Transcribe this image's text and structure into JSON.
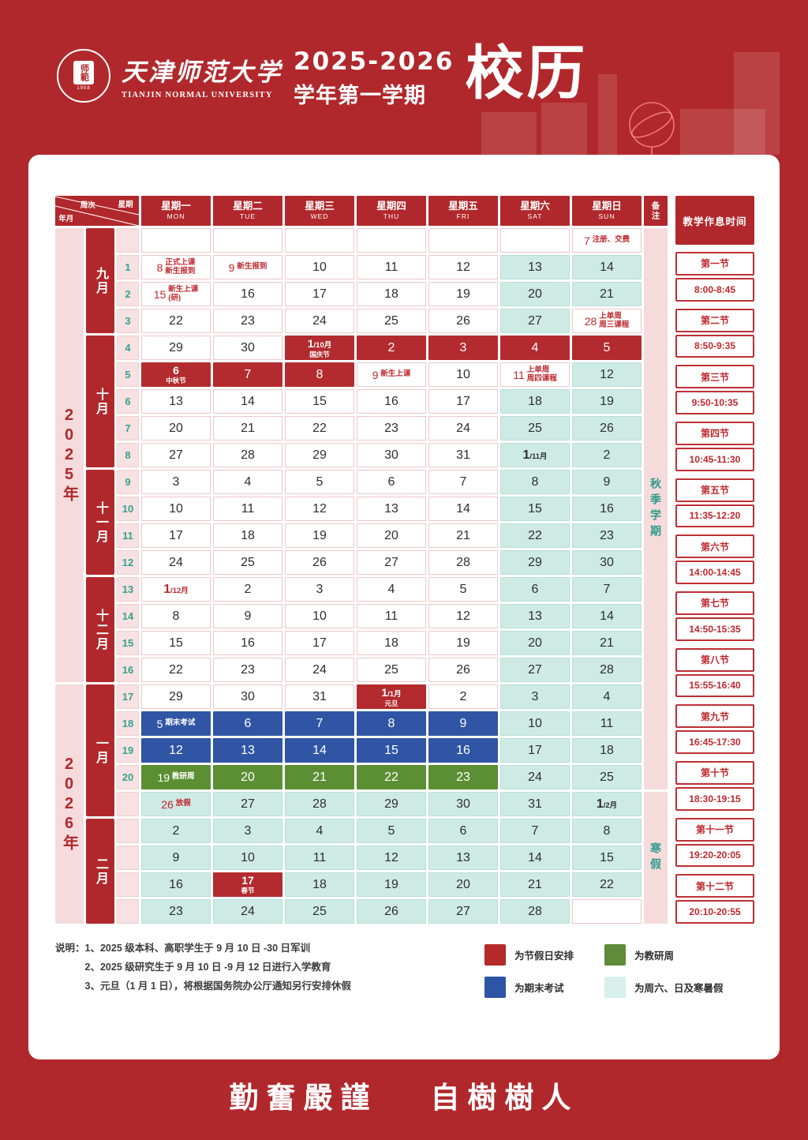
{
  "header": {
    "logo": {
      "seal_center": "师範",
      "seal_year": "1958",
      "name_cn": "天津师范大学",
      "name_en": "TIANJIN NORMAL UNIVERSITY"
    },
    "title": {
      "line1": "2025-2026",
      "line2": "学年第一学期",
      "big": "校历"
    }
  },
  "table": {
    "corner": {
      "week": "周次",
      "weekday": "星期",
      "yearmonth": "年月"
    },
    "beizhu_header": "备注",
    "day_headers": [
      {
        "cn": "星期一",
        "en": "MON"
      },
      {
        "cn": "星期二",
        "en": "TUE"
      },
      {
        "cn": "星期三",
        "en": "WED"
      },
      {
        "cn": "星期四",
        "en": "THU"
      },
      {
        "cn": "星期五",
        "en": "FRI"
      },
      {
        "cn": "星期六",
        "en": "SAT"
      },
      {
        "cn": "星期日",
        "en": "SUN"
      }
    ],
    "years": [
      {
        "label": "2025年",
        "from": 0,
        "span": 17
      },
      {
        "label": "2026年",
        "from": 17,
        "span": 9
      }
    ],
    "months": [
      {
        "label": "九月",
        "from": 0,
        "span": 4
      },
      {
        "label": "十月",
        "from": 4,
        "span": 5
      },
      {
        "label": "十一月",
        "from": 9,
        "span": 4
      },
      {
        "label": "十二月",
        "from": 13,
        "span": 4
      },
      {
        "label": "一月",
        "from": 17,
        "span": 5
      },
      {
        "label": "二月",
        "from": 22,
        "span": 4
      }
    ],
    "remarks": [
      {
        "label": "秋季学期",
        "from": 0,
        "span": 21
      },
      {
        "label": "寒假",
        "from": 21,
        "span": 5
      }
    ],
    "rows": [
      {
        "week": "",
        "cells": [
          {
            "cls": "empty"
          },
          {
            "cls": "empty"
          },
          {
            "cls": "empty"
          },
          {
            "cls": "empty"
          },
          {
            "cls": "empty"
          },
          {
            "cls": "empty"
          },
          {
            "d": "7",
            "note": "注册、交费",
            "cls": "event"
          }
        ]
      },
      {
        "week": "1",
        "cells": [
          {
            "d": "8",
            "note": "正式上课\n新生报到",
            "cls": "event"
          },
          {
            "d": "9",
            "note": "新生报到",
            "cls": "event"
          },
          {
            "d": "10",
            "cls": "plain"
          },
          {
            "d": "11",
            "cls": "plain"
          },
          {
            "d": "12",
            "cls": "plain"
          },
          {
            "d": "13",
            "cls": "weekend"
          },
          {
            "d": "14",
            "cls": "weekend"
          }
        ]
      },
      {
        "week": "2",
        "cells": [
          {
            "d": "15",
            "note": "新生上课\n(研)",
            "cls": "event"
          },
          {
            "d": "16",
            "cls": "plain"
          },
          {
            "d": "17",
            "cls": "plain"
          },
          {
            "d": "18",
            "cls": "plain"
          },
          {
            "d": "19",
            "cls": "plain"
          },
          {
            "d": "20",
            "cls": "weekend"
          },
          {
            "d": "21",
            "cls": "weekend"
          }
        ]
      },
      {
        "week": "3",
        "cells": [
          {
            "d": "22",
            "cls": "plain"
          },
          {
            "d": "23",
            "cls": "plain"
          },
          {
            "d": "24",
            "cls": "plain"
          },
          {
            "d": "25",
            "cls": "plain"
          },
          {
            "d": "26",
            "cls": "plain"
          },
          {
            "d": "27",
            "cls": "weekend"
          },
          {
            "d": "28",
            "note": "上单周\n周三课程",
            "cls": "event"
          }
        ]
      },
      {
        "week": "4",
        "cells": [
          {
            "d": "29",
            "cls": "plain"
          },
          {
            "d": "30",
            "cls": "plain"
          },
          {
            "d": "1",
            "suffix": "/10月",
            "sub": "国庆节",
            "cls": "holiday"
          },
          {
            "d": "2",
            "cls": "holiday"
          },
          {
            "d": "3",
            "cls": "holiday"
          },
          {
            "d": "4",
            "cls": "holiday"
          },
          {
            "d": "5",
            "cls": "holiday"
          }
        ]
      },
      {
        "week": "5",
        "cells": [
          {
            "d": "6",
            "sub": "中秋节",
            "cls": "holiday"
          },
          {
            "d": "7",
            "cls": "holiday"
          },
          {
            "d": "8",
            "cls": "holiday"
          },
          {
            "d": "9",
            "note": "新生上课",
            "cls": "event"
          },
          {
            "d": "10",
            "cls": "plain"
          },
          {
            "d": "11",
            "note": "上单周\n周四课程",
            "cls": "event"
          },
          {
            "d": "12",
            "cls": "weekend"
          }
        ]
      },
      {
        "week": "6",
        "cells": [
          {
            "d": "13",
            "cls": "plain"
          },
          {
            "d": "14",
            "cls": "plain"
          },
          {
            "d": "15",
            "cls": "plain"
          },
          {
            "d": "16",
            "cls": "plain"
          },
          {
            "d": "17",
            "cls": "plain"
          },
          {
            "d": "18",
            "cls": "weekend"
          },
          {
            "d": "19",
            "cls": "weekend"
          }
        ]
      },
      {
        "week": "7",
        "cells": [
          {
            "d": "20",
            "cls": "plain"
          },
          {
            "d": "21",
            "cls": "plain"
          },
          {
            "d": "22",
            "cls": "plain"
          },
          {
            "d": "23",
            "cls": "plain"
          },
          {
            "d": "24",
            "cls": "plain"
          },
          {
            "d": "25",
            "cls": "weekend"
          },
          {
            "d": "26",
            "cls": "weekend"
          }
        ]
      },
      {
        "week": "8",
        "cells": [
          {
            "d": "27",
            "cls": "plain"
          },
          {
            "d": "28",
            "cls": "plain"
          },
          {
            "d": "29",
            "cls": "plain"
          },
          {
            "d": "30",
            "cls": "plain"
          },
          {
            "d": "31",
            "cls": "plain"
          },
          {
            "d": "1",
            "suffix": "/11月",
            "cls": "weekend"
          },
          {
            "d": "2",
            "cls": "weekend"
          }
        ]
      },
      {
        "week": "9",
        "cells": [
          {
            "d": "3",
            "cls": "plain"
          },
          {
            "d": "4",
            "cls": "plain"
          },
          {
            "d": "5",
            "cls": "plain"
          },
          {
            "d": "6",
            "cls": "plain"
          },
          {
            "d": "7",
            "cls": "plain"
          },
          {
            "d": "8",
            "cls": "weekend"
          },
          {
            "d": "9",
            "cls": "weekend"
          }
        ]
      },
      {
        "week": "10",
        "cells": [
          {
            "d": "10",
            "cls": "plain"
          },
          {
            "d": "11",
            "cls": "plain"
          },
          {
            "d": "12",
            "cls": "plain"
          },
          {
            "d": "13",
            "cls": "plain"
          },
          {
            "d": "14",
            "cls": "plain"
          },
          {
            "d": "15",
            "cls": "weekend"
          },
          {
            "d": "16",
            "cls": "weekend"
          }
        ]
      },
      {
        "week": "11",
        "cells": [
          {
            "d": "17",
            "cls": "plain"
          },
          {
            "d": "18",
            "cls": "plain"
          },
          {
            "d": "19",
            "cls": "plain"
          },
          {
            "d": "20",
            "cls": "plain"
          },
          {
            "d": "21",
            "cls": "plain"
          },
          {
            "d": "22",
            "cls": "weekend"
          },
          {
            "d": "23",
            "cls": "weekend"
          }
        ]
      },
      {
        "week": "12",
        "cells": [
          {
            "d": "24",
            "cls": "plain"
          },
          {
            "d": "25",
            "cls": "plain"
          },
          {
            "d": "26",
            "cls": "plain"
          },
          {
            "d": "27",
            "cls": "plain"
          },
          {
            "d": "28",
            "cls": "plain"
          },
          {
            "d": "29",
            "cls": "weekend"
          },
          {
            "d": "30",
            "cls": "weekend"
          }
        ]
      },
      {
        "week": "13",
        "cells": [
          {
            "d": "1",
            "suffix": "/12月",
            "cls": "event"
          },
          {
            "d": "2",
            "cls": "plain"
          },
          {
            "d": "3",
            "cls": "plain"
          },
          {
            "d": "4",
            "cls": "plain"
          },
          {
            "d": "5",
            "cls": "plain"
          },
          {
            "d": "6",
            "cls": "weekend"
          },
          {
            "d": "7",
            "cls": "weekend"
          }
        ]
      },
      {
        "week": "14",
        "cells": [
          {
            "d": "8",
            "cls": "plain"
          },
          {
            "d": "9",
            "cls": "plain"
          },
          {
            "d": "10",
            "cls": "plain"
          },
          {
            "d": "11",
            "cls": "plain"
          },
          {
            "d": "12",
            "cls": "plain"
          },
          {
            "d": "13",
            "cls": "weekend"
          },
          {
            "d": "14",
            "cls": "weekend"
          }
        ]
      },
      {
        "week": "15",
        "cells": [
          {
            "d": "15",
            "cls": "plain"
          },
          {
            "d": "16",
            "cls": "plain"
          },
          {
            "d": "17",
            "cls": "plain"
          },
          {
            "d": "18",
            "cls": "plain"
          },
          {
            "d": "19",
            "cls": "plain"
          },
          {
            "d": "20",
            "cls": "weekend"
          },
          {
            "d": "21",
            "cls": "weekend"
          }
        ]
      },
      {
        "week": "16",
        "cells": [
          {
            "d": "22",
            "cls": "plain"
          },
          {
            "d": "23",
            "cls": "plain"
          },
          {
            "d": "24",
            "cls": "plain"
          },
          {
            "d": "25",
            "cls": "plain"
          },
          {
            "d": "26",
            "cls": "plain"
          },
          {
            "d": "27",
            "cls": "weekend"
          },
          {
            "d": "28",
            "cls": "weekend"
          }
        ]
      },
      {
        "week": "17",
        "cells": [
          {
            "d": "29",
            "cls": "plain"
          },
          {
            "d": "30",
            "cls": "plain"
          },
          {
            "d": "31",
            "cls": "plain"
          },
          {
            "d": "1",
            "suffix": "/1月",
            "sub": "元旦",
            "cls": "holiday"
          },
          {
            "d": "2",
            "cls": "plain"
          },
          {
            "d": "3",
            "cls": "weekend"
          },
          {
            "d": "4",
            "cls": "weekend"
          }
        ]
      },
      {
        "week": "18",
        "cells": [
          {
            "d": "5",
            "note": "期末考试",
            "cls": "exam"
          },
          {
            "d": "6",
            "cls": "exam"
          },
          {
            "d": "7",
            "cls": "exam"
          },
          {
            "d": "8",
            "cls": "exam"
          },
          {
            "d": "9",
            "cls": "exam"
          },
          {
            "d": "10",
            "cls": "weekend"
          },
          {
            "d": "11",
            "cls": "weekend"
          }
        ]
      },
      {
        "week": "19",
        "cells": [
          {
            "d": "12",
            "cls": "exam"
          },
          {
            "d": "13",
            "cls": "exam"
          },
          {
            "d": "14",
            "cls": "exam"
          },
          {
            "d": "15",
            "cls": "exam"
          },
          {
            "d": "16",
            "cls": "exam"
          },
          {
            "d": "17",
            "cls": "weekend"
          },
          {
            "d": "18",
            "cls": "weekend"
          }
        ]
      },
      {
        "week": "20",
        "cells": [
          {
            "d": "19",
            "note": "教研周",
            "cls": "research"
          },
          {
            "d": "20",
            "cls": "research"
          },
          {
            "d": "21",
            "cls": "research"
          },
          {
            "d": "22",
            "cls": "research"
          },
          {
            "d": "23",
            "cls": "research"
          },
          {
            "d": "24",
            "cls": "weekend"
          },
          {
            "d": "25",
            "cls": "weekend"
          }
        ]
      },
      {
        "week": "",
        "cells": [
          {
            "d": "26",
            "note": "放假",
            "cls": "weekend-event"
          },
          {
            "d": "27",
            "cls": "weekend"
          },
          {
            "d": "28",
            "cls": "weekend"
          },
          {
            "d": "29",
            "cls": "weekend"
          },
          {
            "d": "30",
            "cls": "weekend"
          },
          {
            "d": "31",
            "cls": "weekend"
          },
          {
            "d": "1",
            "suffix": "/2月",
            "cls": "weekend"
          }
        ]
      },
      {
        "week": "",
        "cells": [
          {
            "d": "2",
            "cls": "weekend"
          },
          {
            "d": "3",
            "cls": "weekend"
          },
          {
            "d": "4",
            "cls": "weekend"
          },
          {
            "d": "5",
            "cls": "weekend"
          },
          {
            "d": "6",
            "cls": "weekend"
          },
          {
            "d": "7",
            "cls": "weekend"
          },
          {
            "d": "8",
            "cls": "weekend"
          }
        ]
      },
      {
        "week": "",
        "cells": [
          {
            "d": "9",
            "cls": "weekend"
          },
          {
            "d": "10",
            "cls": "weekend"
          },
          {
            "d": "11",
            "cls": "weekend"
          },
          {
            "d": "12",
            "cls": "weekend"
          },
          {
            "d": "13",
            "cls": "weekend"
          },
          {
            "d": "14",
            "cls": "weekend"
          },
          {
            "d": "15",
            "cls": "weekend"
          }
        ]
      },
      {
        "week": "",
        "cells": [
          {
            "d": "16",
            "cls": "weekend"
          },
          {
            "d": "17",
            "sub": "春节",
            "cls": "holiday"
          },
          {
            "d": "18",
            "cls": "weekend"
          },
          {
            "d": "19",
            "cls": "weekend"
          },
          {
            "d": "20",
            "cls": "weekend"
          },
          {
            "d": "21",
            "cls": "weekend"
          },
          {
            "d": "22",
            "cls": "weekend"
          }
        ]
      },
      {
        "week": "",
        "cells": [
          {
            "d": "23",
            "cls": "weekend"
          },
          {
            "d": "24",
            "cls": "weekend"
          },
          {
            "d": "25",
            "cls": "weekend"
          },
          {
            "d": "26",
            "cls": "weekend"
          },
          {
            "d": "27",
            "cls": "weekend"
          },
          {
            "d": "28",
            "cls": "weekend"
          },
          {
            "cls": "empty"
          }
        ]
      }
    ]
  },
  "schedule": {
    "title": "教学作息时间",
    "periods": [
      {
        "name": "第一节",
        "time": "8:00-8:45"
      },
      {
        "name": "第二节",
        "time": "8:50-9:35"
      },
      {
        "name": "第三节",
        "time": "9:50-10:35"
      },
      {
        "name": "第四节",
        "time": "10:45-11:30"
      },
      {
        "name": "第五节",
        "time": "11:35-12:20"
      },
      {
        "name": "第六节",
        "time": "14:00-14:45"
      },
      {
        "name": "第七节",
        "time": "14:50-15:35"
      },
      {
        "name": "第八节",
        "time": "15:55-16:40"
      },
      {
        "name": "第九节",
        "time": "16:45-17:30"
      },
      {
        "name": "第十节",
        "time": "18:30-19:15"
      },
      {
        "name": "第十一节",
        "time": "19:20-20:05"
      },
      {
        "name": "第十二节",
        "time": "20:10-20:55"
      }
    ]
  },
  "notes": {
    "prefix": "说明：",
    "items": [
      "1、2025 级本科、高职学生于 9 月 10 日 -30 日军训",
      "2、2025 级研究生于 9 月 10 日 -9 月 12 日进行入学教育",
      "3、元旦（1 月 1 日），将根据国务院办公厅通知另行安排休假"
    ]
  },
  "legend": [
    {
      "color": "#B42A28",
      "label": "为节假日安排"
    },
    {
      "color": "#5E8C3A",
      "label": "为教研周"
    },
    {
      "color": "#2D55A6",
      "label": "为期末考试"
    },
    {
      "color": "#D7F0EA",
      "label": "为周六、日及寒暑假"
    }
  ],
  "footer": {
    "motto_left": "勤奮嚴謹",
    "motto_right": "自樹樹人"
  }
}
